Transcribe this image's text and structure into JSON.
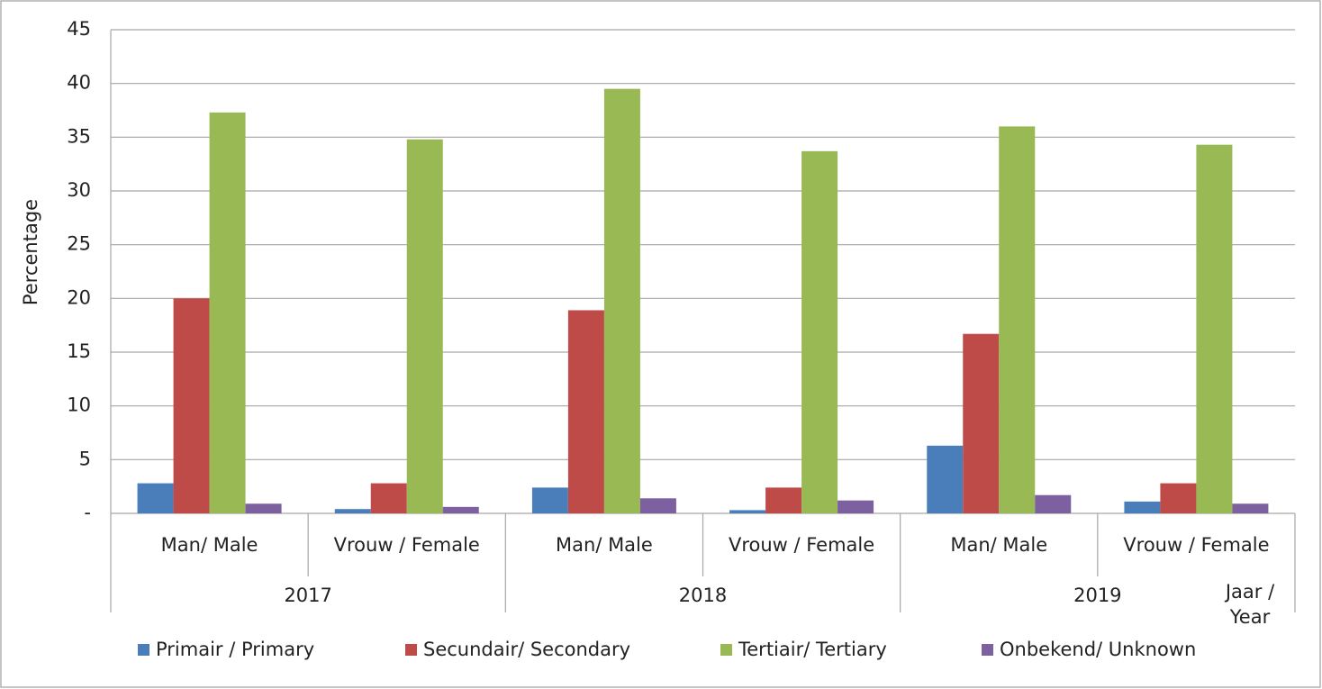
{
  "chart_data": {
    "type": "bar",
    "y_label": "Percentage",
    "categories": [
      "Man/ Male",
      "Vrouw / Female",
      "Man/ Male",
      "Vrouw / Female",
      "Man/ Male",
      "Vrouw / Female"
    ],
    "group_labels": [
      "2017",
      "2018",
      "2019"
    ],
    "x_label_lines": [
      "Jaar /",
      "Year"
    ],
    "series": [
      {
        "name": "Primair / Primary",
        "color": "#4a7ebb",
        "values": [
          2.8,
          0.4,
          2.4,
          0.3,
          6.3,
          1.1
        ]
      },
      {
        "name": "Secundair/ Secondary",
        "color": "#be4b48",
        "values": [
          20.0,
          2.8,
          18.9,
          2.4,
          16.7,
          2.8
        ]
      },
      {
        "name": "Tertiair/ Tertiary",
        "color": "#98b954",
        "values": [
          37.3,
          34.8,
          39.5,
          33.7,
          36.0,
          34.3
        ]
      },
      {
        "name": "Onbekend/ Unknown",
        "color": "#7d60a0",
        "values": [
          0.9,
          0.6,
          1.4,
          1.2,
          1.7,
          0.9
        ]
      }
    ],
    "ylim": [
      0,
      45
    ],
    "yticks": [
      {
        "value": 0,
        "label": "-"
      },
      5,
      10,
      15,
      20,
      25,
      30,
      35,
      40,
      45
    ],
    "grid": true,
    "legend": "bottom"
  }
}
